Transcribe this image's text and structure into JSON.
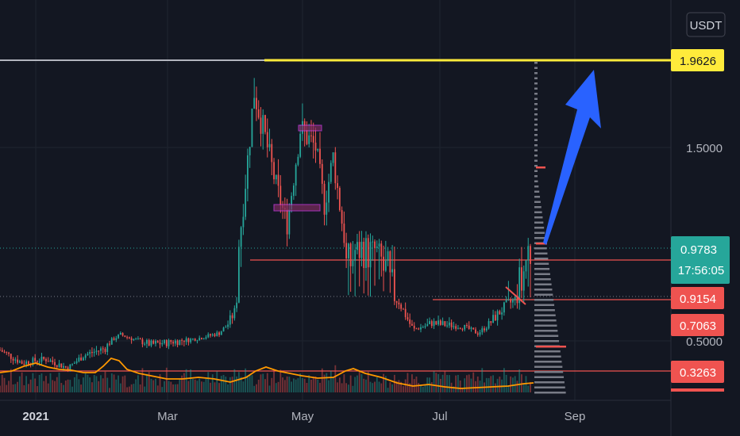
{
  "currency_button": "USDT",
  "time_axis": [
    "2021",
    "Mar",
    "May",
    "Jul",
    "Sep"
  ],
  "price_axis": [
    "1.5000",
    "0.5000"
  ],
  "price_tags": {
    "target": "1.9626",
    "current": "0.9783",
    "countdown": "17:56:05",
    "support_1": "0.9154",
    "support_2": "0.7063",
    "support_3": "0.3263"
  },
  "colors": {
    "background": "#131722",
    "up": "#26a69a",
    "down": "#ef5350",
    "target_line": "#ffeb3b",
    "arrow": "#2962ff",
    "volume_ma": "#ff9800"
  },
  "chart_data": {
    "type": "candlestick",
    "symbol_quote": "USDT",
    "ylim": [
      0.3,
      2.0
    ],
    "xlim": [
      "2020-12-15",
      "2021-10-20"
    ],
    "close_series": [
      {
        "x": "2020-12-15",
        "y": 0.45
      },
      {
        "x": "2020-12-25",
        "y": 0.38
      },
      {
        "x": "2021-01-05",
        "y": 0.4
      },
      {
        "x": "2021-01-15",
        "y": 0.35
      },
      {
        "x": "2021-01-22",
        "y": 0.42
      },
      {
        "x": "2021-02-01",
        "y": 0.46
      },
      {
        "x": "2021-02-08",
        "y": 0.58
      },
      {
        "x": "2021-02-14",
        "y": 0.52
      },
      {
        "x": "2021-02-22",
        "y": 0.48
      },
      {
        "x": "2021-03-05",
        "y": 0.5
      },
      {
        "x": "2021-03-15",
        "y": 0.53
      },
      {
        "x": "2021-03-25",
        "y": 0.6
      },
      {
        "x": "2021-04-01",
        "y": 0.8
      },
      {
        "x": "2021-04-05",
        "y": 1.2
      },
      {
        "x": "2021-04-10",
        "y": 1.8
      },
      {
        "x": "2021-04-15",
        "y": 1.55
      },
      {
        "x": "2021-04-20",
        "y": 1.3
      },
      {
        "x": "2021-04-25",
        "y": 1.1
      },
      {
        "x": "2021-05-01",
        "y": 1.6
      },
      {
        "x": "2021-05-08",
        "y": 1.5
      },
      {
        "x": "2021-05-12",
        "y": 1.2
      },
      {
        "x": "2021-05-16",
        "y": 1.45
      },
      {
        "x": "2021-05-22",
        "y": 0.95
      },
      {
        "x": "2021-05-30",
        "y": 1.0
      },
      {
        "x": "2021-06-08",
        "y": 0.95
      },
      {
        "x": "2021-06-15",
        "y": 0.88
      },
      {
        "x": "2021-06-22",
        "y": 0.65
      },
      {
        "x": "2021-06-30",
        "y": 0.72
      },
      {
        "x": "2021-07-08",
        "y": 0.7
      },
      {
        "x": "2021-07-15",
        "y": 0.68
      },
      {
        "x": "2021-07-21",
        "y": 0.6
      },
      {
        "x": "2021-07-28",
        "y": 0.75
      },
      {
        "x": "2021-08-03",
        "y": 0.85
      },
      {
        "x": "2021-08-08",
        "y": 0.9
      },
      {
        "x": "2021-08-13",
        "y": 0.98
      }
    ],
    "horizontal_levels": [
      {
        "label": "1.9626",
        "value": 1.9626,
        "color": "#ffeb3b"
      },
      {
        "label": "0.9154",
        "value": 0.9154,
        "color": "#ef5350"
      },
      {
        "label": "0.7063",
        "value": 0.7063,
        "color": "#ef5350"
      },
      {
        "label": "0.3263",
        "value": 0.3263,
        "color": "#ef5350"
      }
    ],
    "current_price": 0.9783,
    "projection_target": 1.9626
  }
}
